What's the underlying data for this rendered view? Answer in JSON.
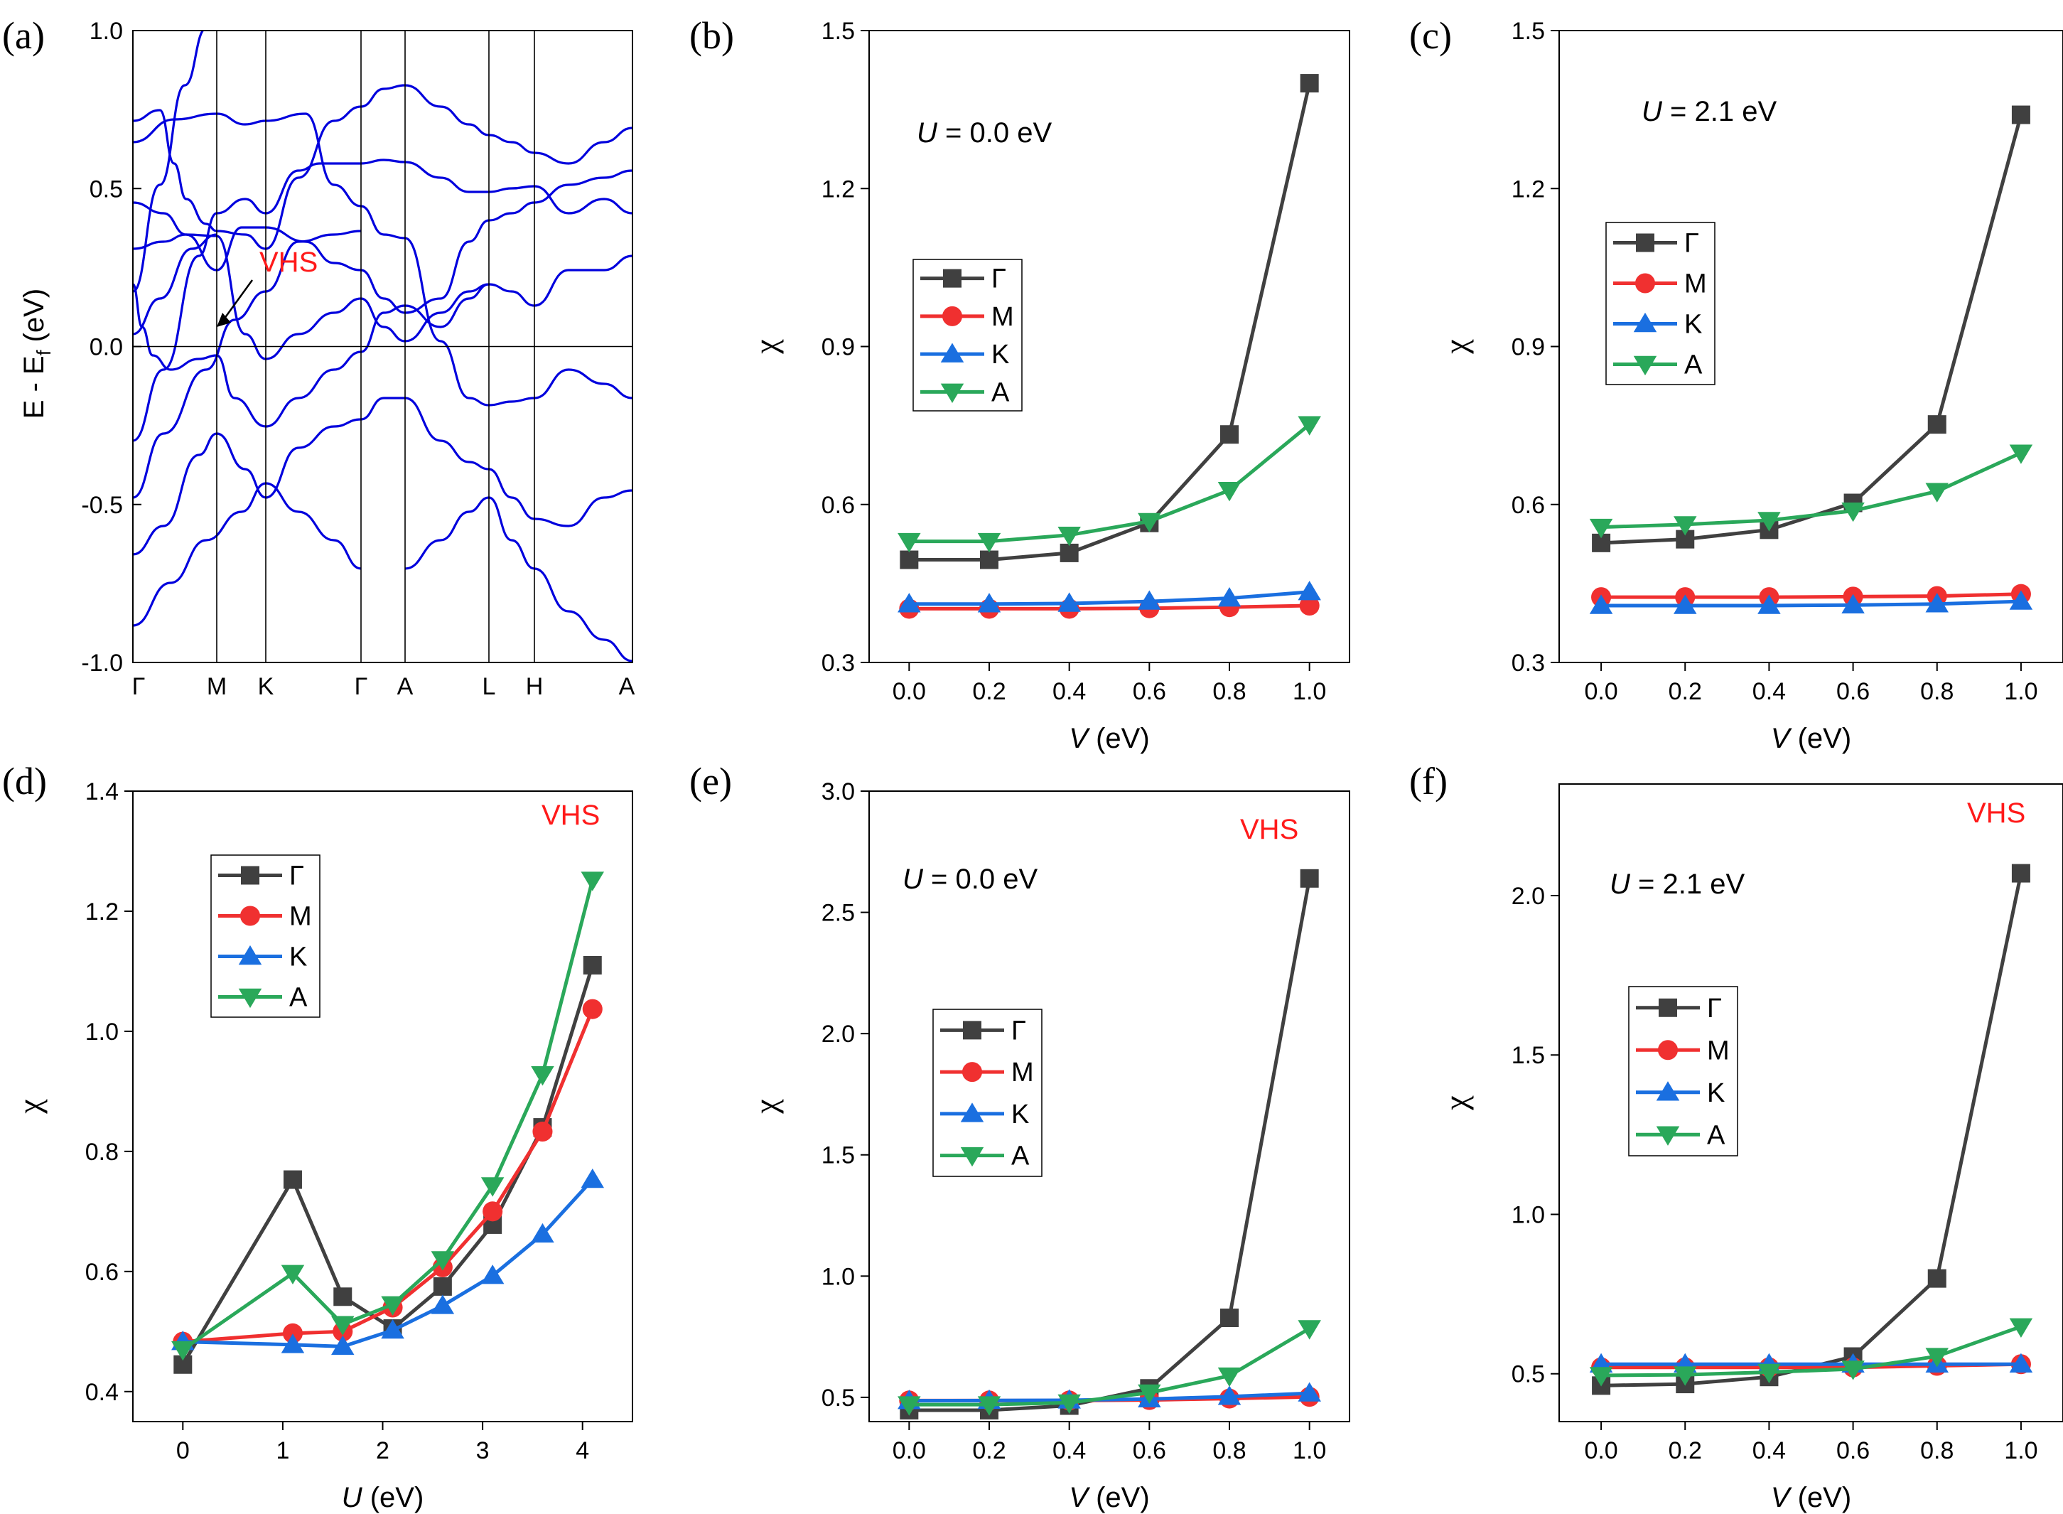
{
  "chart_data": [
    {
      "panel": "(a)",
      "type": "line",
      "ylabel_main": "E - E",
      "ylabel_sub": "f",
      "ylabel_unit": " (eV)",
      "ylim": [
        -1.0,
        1.0
      ],
      "yticks": [
        "1.0",
        "0.5",
        "0.0",
        "-0.5",
        "-1.0"
      ],
      "xticks": [
        "Γ",
        "M",
        "K",
        "Γ",
        "A",
        "L",
        "H",
        "A"
      ],
      "annotation": "VHS",
      "band_color": "#0000dd"
    },
    {
      "panel": "(b)",
      "type": "line",
      "annotation_var": "U",
      "annotation_rest": " = 0.0 eV",
      "vhs_label": "",
      "xlabel_var": "V",
      "xlabel_rest": " (eV)",
      "ylabel": "χ",
      "xlim": [
        -0.1,
        1.1
      ],
      "ylim": [
        0.3,
        1.5
      ],
      "xticks": [
        "0.0",
        "0.2",
        "0.4",
        "0.6",
        "0.8",
        "1.0"
      ],
      "yticks": [
        "0.3",
        "0.6",
        "0.9",
        "1.2",
        "1.5"
      ],
      "x": [
        0.0,
        0.2,
        0.4,
        0.6,
        0.8,
        1.0
      ],
      "series": [
        {
          "name": "Γ",
          "values": [
            0.495,
            0.495,
            0.508,
            0.565,
            0.733,
            1.4
          ]
        },
        {
          "name": "M",
          "values": [
            0.402,
            0.402,
            0.402,
            0.403,
            0.405,
            0.408
          ]
        },
        {
          "name": "K",
          "values": [
            0.411,
            0.411,
            0.412,
            0.416,
            0.422,
            0.434
          ]
        },
        {
          "name": "A",
          "values": [
            0.53,
            0.53,
            0.542,
            0.568,
            0.627,
            0.752
          ]
        }
      ]
    },
    {
      "panel": "(c)",
      "type": "line",
      "annotation_var": "U",
      "annotation_rest": " = 2.1 eV",
      "vhs_label": "",
      "xlabel_var": "V",
      "xlabel_rest": " (eV)",
      "ylabel": "χ",
      "xlim": [
        -0.1,
        1.1
      ],
      "ylim": [
        0.3,
        1.5
      ],
      "xticks": [
        "0.0",
        "0.2",
        "0.4",
        "0.6",
        "0.8",
        "1.0"
      ],
      "yticks": [
        "0.3",
        "0.6",
        "0.9",
        "1.2",
        "1.5"
      ],
      "x": [
        0.0,
        0.2,
        0.4,
        0.6,
        0.8,
        1.0
      ],
      "series": [
        {
          "name": "Γ",
          "values": [
            0.527,
            0.534,
            0.552,
            0.603,
            0.752,
            1.34
          ]
        },
        {
          "name": "M",
          "values": [
            0.424,
            0.424,
            0.424,
            0.425,
            0.426,
            0.43
          ]
        },
        {
          "name": "K",
          "values": [
            0.408,
            0.408,
            0.408,
            0.409,
            0.411,
            0.416
          ]
        },
        {
          "name": "A",
          "values": [
            0.557,
            0.562,
            0.57,
            0.588,
            0.625,
            0.698
          ]
        }
      ]
    },
    {
      "panel": "(d)",
      "type": "line",
      "annotation_var": "",
      "annotation_rest": "",
      "vhs_label": "VHS",
      "xlabel_var": "U",
      "xlabel_rest": " (eV)",
      "ylabel": "χ",
      "xlim": [
        -0.5,
        4.5
      ],
      "ylim": [
        0.35,
        1.4
      ],
      "xticks": [
        "0",
        "1",
        "2",
        "3",
        "4"
      ],
      "yticks": [
        "0.4",
        "0.6",
        "0.8",
        "1.0",
        "1.2",
        "1.4"
      ],
      "x": [
        0.0,
        1.1,
        1.6,
        2.1,
        2.6,
        3.1,
        3.6,
        4.1
      ],
      "series": [
        {
          "name": "Γ",
          "values": [
            0.445,
            0.753,
            0.558,
            0.505,
            0.575,
            0.678,
            0.84,
            1.11
          ]
        },
        {
          "name": "M",
          "values": [
            0.483,
            0.497,
            0.5,
            0.54,
            0.607,
            0.7,
            0.833,
            1.037
          ]
        },
        {
          "name": "K",
          "values": [
            0.483,
            0.478,
            0.475,
            0.502,
            0.543,
            0.593,
            0.662,
            0.753
          ]
        },
        {
          "name": "A",
          "values": [
            0.47,
            0.597,
            0.512,
            0.545,
            0.62,
            0.743,
            0.928,
            1.252
          ]
        }
      ]
    },
    {
      "panel": "(e)",
      "type": "line",
      "annotation_var": "U",
      "annotation_rest": " = 0.0 eV",
      "vhs_label": "VHS",
      "xlabel_var": "V",
      "xlabel_rest": " (eV)",
      "ylabel": "χ",
      "xlim": [
        -0.1,
        1.1
      ],
      "ylim": [
        0.4,
        3.0
      ],
      "xticks": [
        "0.0",
        "0.2",
        "0.4",
        "0.6",
        "0.8",
        "1.0"
      ],
      "yticks": [
        "0.5",
        "1.0",
        "1.5",
        "2.0",
        "2.5",
        "3.0"
      ],
      "x": [
        0.0,
        0.2,
        0.4,
        0.6,
        0.8,
        1.0
      ],
      "series": [
        {
          "name": "Γ",
          "values": [
            0.447,
            0.447,
            0.466,
            0.537,
            0.828,
            2.64
          ]
        },
        {
          "name": "M",
          "values": [
            0.487,
            0.487,
            0.487,
            0.489,
            0.495,
            0.502
          ]
        },
        {
          "name": "K",
          "values": [
            0.486,
            0.487,
            0.488,
            0.493,
            0.503,
            0.517
          ]
        },
        {
          "name": "A",
          "values": [
            0.47,
            0.47,
            0.478,
            0.519,
            0.589,
            0.784
          ]
        }
      ]
    },
    {
      "panel": "(f)",
      "type": "line",
      "annotation_var": "U",
      "annotation_rest": " = 2.1 eV",
      "vhs_label": "VHS",
      "xlabel_var": "V",
      "xlabel_rest": " (eV)",
      "ylabel": "χ",
      "xlim": [
        -0.1,
        1.1
      ],
      "ylim": [
        0.35,
        2.35
      ],
      "xticks": [
        "0.0",
        "0.2",
        "0.4",
        "0.6",
        "0.8",
        "1.0"
      ],
      "yticks": [
        "0.5",
        "1.0",
        "1.5",
        "2.0"
      ],
      "x": [
        0.0,
        0.2,
        0.4,
        0.6,
        0.8,
        1.0
      ],
      "series": [
        {
          "name": "Γ",
          "values": [
            0.463,
            0.468,
            0.49,
            0.554,
            0.799,
            2.07
          ]
        },
        {
          "name": "M",
          "values": [
            0.52,
            0.52,
            0.52,
            0.52,
            0.525,
            0.53
          ]
        },
        {
          "name": "K",
          "values": [
            0.53,
            0.53,
            0.53,
            0.53,
            0.53,
            0.53
          ]
        },
        {
          "name": "A",
          "values": [
            0.495,
            0.497,
            0.505,
            0.515,
            0.555,
            0.648
          ]
        }
      ]
    }
  ],
  "series_style": {
    "Γ": {
      "color": "#404040",
      "marker": "square"
    },
    "M": {
      "color": "#f03030",
      "marker": "circle"
    },
    "K": {
      "color": "#1a6fe0",
      "marker": "triangle-up"
    },
    "A": {
      "color": "#2aa85a",
      "marker": "triangle-down"
    }
  }
}
